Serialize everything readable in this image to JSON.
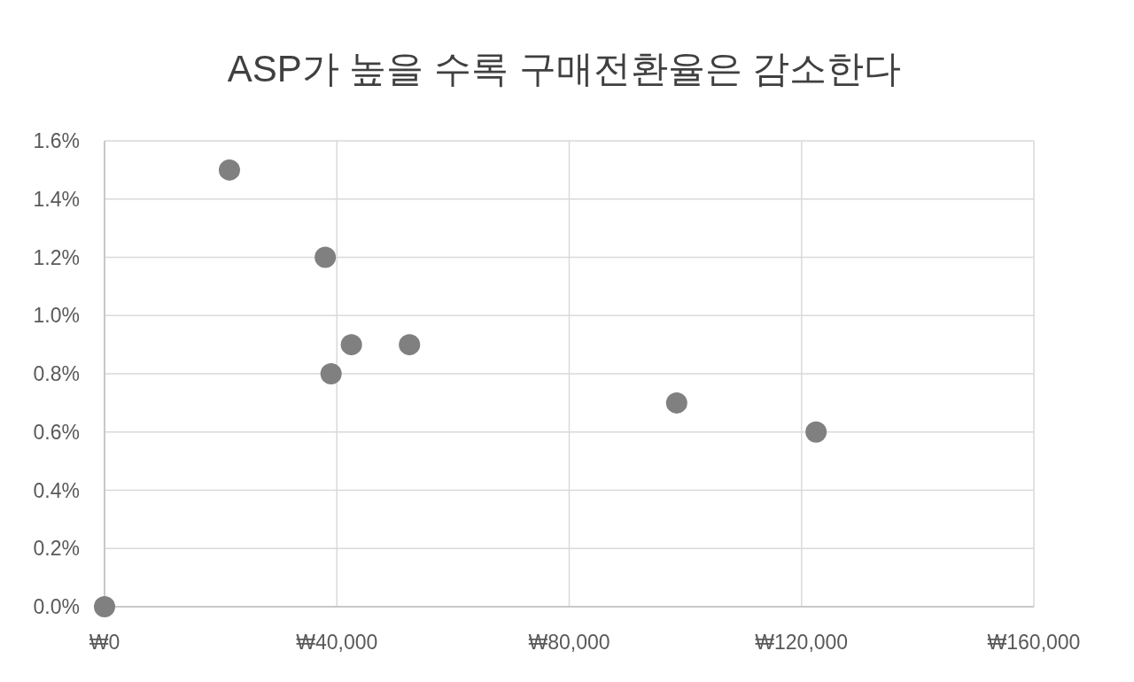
{
  "chart_data": {
    "type": "scatter",
    "title": "ASP가 높을 수록 구매전환율은 감소한다",
    "x": [
      0,
      21500,
      38000,
      39000,
      42500,
      52500,
      98500,
      122500
    ],
    "series": [
      {
        "color": "#808080",
        "values": [
          0,
          1.5,
          1.2,
          0.8,
          0.9,
          0.9,
          0.7,
          0.6
        ]
      }
    ],
    "marker": "circle",
    "grid": true,
    "xlim": [
      0,
      160000
    ],
    "xticks": [
      {
        "value": 0,
        "label": "₩0"
      },
      {
        "value": 40000,
        "label": "₩40,000"
      },
      {
        "value": 80000,
        "label": "₩80,000"
      },
      {
        "value": 120000,
        "label": "₩120,000"
      },
      {
        "value": 160000,
        "label": "₩160,000"
      }
    ],
    "ylim": [
      0,
      1.6
    ],
    "yticks": [
      {
        "value": 0,
        "label": "0.0%"
      },
      {
        "value": 0.2,
        "label": "0.2%"
      },
      {
        "value": 0.4,
        "label": "0.4%"
      },
      {
        "value": 0.6,
        "label": "0.6%"
      },
      {
        "value": 0.8,
        "label": "0.8%"
      },
      {
        "value": 1.0,
        "label": "1.0%"
      },
      {
        "value": 1.2,
        "label": "1.2%"
      },
      {
        "value": 1.4,
        "label": "1.4%"
      },
      {
        "value": 1.6,
        "label": "1.6%"
      }
    ]
  }
}
